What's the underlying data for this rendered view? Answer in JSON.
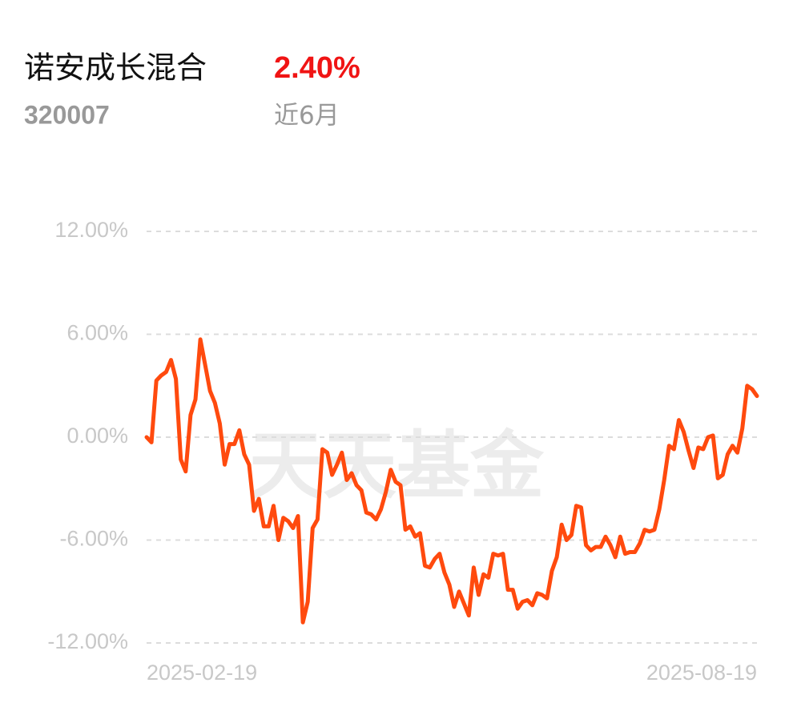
{
  "header": {
    "title": "诺安成长混合",
    "return": "2.40%",
    "code": "320007",
    "period": "近6月"
  },
  "chart_data": {
    "type": "line",
    "watermark": "天天基金",
    "categories": [
      "2025-02-19",
      null,
      null,
      null,
      null,
      null,
      null,
      null,
      null,
      null,
      null,
      null,
      null,
      null,
      null,
      null,
      null,
      null,
      null,
      null,
      null,
      null,
      null,
      null,
      null,
      null,
      null,
      null,
      null,
      null,
      null,
      null,
      null,
      null,
      null,
      null,
      null,
      null,
      null,
      null,
      null,
      null,
      null,
      null,
      null,
      null,
      null,
      null,
      null,
      null,
      null,
      null,
      null,
      null,
      null,
      null,
      null,
      null,
      null,
      null,
      null,
      null,
      null,
      null,
      null,
      null,
      null,
      null,
      null,
      null,
      null,
      null,
      null,
      null,
      null,
      null,
      null,
      null,
      null,
      null,
      null,
      null,
      null,
      null,
      null,
      null,
      null,
      null,
      null,
      null,
      null,
      null,
      null,
      null,
      null,
      null,
      null,
      null,
      null,
      null,
      null,
      null,
      null,
      null,
      null,
      null,
      null,
      null,
      null,
      null,
      null,
      null,
      null,
      null,
      null,
      null,
      null,
      null,
      null,
      null,
      null,
      null,
      null,
      null,
      null,
      "2025-08-19"
    ],
    "series": [
      {
        "color": "#ff4a0e",
        "values": [
          0,
          -0.3,
          3.3,
          3.6,
          3.8,
          4.5,
          3.4,
          -1.3,
          -2.0,
          1.3,
          2.2,
          5.7,
          4.2,
          2.7,
          2.0,
          0.8,
          -1.6,
          -0.4,
          -0.4,
          0.4,
          -1.0,
          -1.6,
          -4.3,
          -3.6,
          -5.2,
          -5.2,
          -4.0,
          -6.0,
          -4.7,
          -4.9,
          -5.3,
          -4.6,
          -10.8,
          -9.6,
          -5.3,
          -4.8,
          -0.7,
          -0.9,
          -2.2,
          -1.6,
          -0.9,
          -2.5,
          -2.1,
          -2.8,
          -3.1,
          -4.4,
          -4.5,
          -4.8,
          -4.2,
          -3.2,
          -1.9,
          -2.6,
          -2.8,
          -5.4,
          -5.2,
          -5.8,
          -5.6,
          -7.5,
          -7.6,
          -7.1,
          -6.8,
          -7.9,
          -8.6,
          -9.9,
          -9.0,
          -9.7,
          -10.4,
          -7.6,
          -9.2,
          -8.0,
          -8.2,
          -6.8,
          -6.9,
          -6.8,
          -8.9,
          -8.9,
          -10.0,
          -9.6,
          -9.5,
          -9.8,
          -9.1,
          -9.2,
          -9.4,
          -7.8,
          -7.0,
          -5.1,
          -6.0,
          -5.7,
          -4.0,
          -4.1,
          -6.3,
          -6.6,
          -6.4,
          -6.4,
          -5.8,
          -6.3,
          -7.0,
          -5.8,
          -6.8,
          -6.7,
          -6.7,
          -6.2,
          -5.4,
          -5.5,
          -5.4,
          -4.2,
          -2.5,
          -0.5,
          -0.7,
          1.0,
          0.3,
          -0.8,
          -1.8,
          -0.6,
          -0.7,
          0.0,
          0.1,
          -2.4,
          -2.2,
          -1.0,
          -0.5,
          -0.9,
          0.5,
          3.0,
          2.8,
          2.4
        ]
      }
    ],
    "ylim": [
      -12,
      12
    ],
    "yticks": [
      {
        "value": 12,
        "label": "12.00%"
      },
      {
        "value": 6,
        "label": "6.00%"
      },
      {
        "value": 0,
        "label": "0.00%"
      },
      {
        "value": -6,
        "label": "-6.00%"
      },
      {
        "value": -12,
        "label": "-12.00%"
      }
    ],
    "grid": true
  }
}
